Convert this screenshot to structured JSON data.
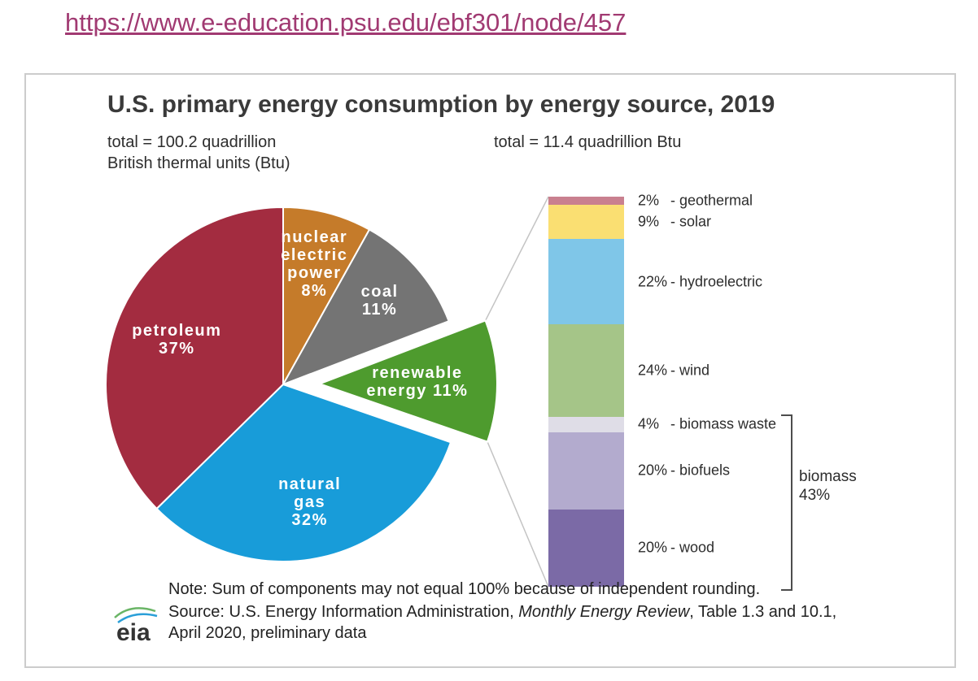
{
  "page": {
    "link_text": "https://www.e-education.psu.edu/ebf301/node/457"
  },
  "figure": {
    "title": "U.S. primary energy consumption by energy source, 2019",
    "pie_total_line1": "total = 100.2 quadrillion",
    "pie_total_line2": "British thermal units (Btu)",
    "bar_total": "total = 11.4 quadrillion Btu",
    "note": "Note: Sum of components may not equal 100% because of independent rounding.",
    "source_prefix": "Source: U.S. Energy Information Administration, ",
    "source_italic": "Monthly Energy Review",
    "source_suffix": ", Table 1.3 and 10.1,",
    "source_line2": "April 2020, preliminary data",
    "logo_text": "eia"
  },
  "chart_data": [
    {
      "type": "pie",
      "title": "U.S. primary energy consumption by energy source, 2019",
      "total_label": "total = 100.2 quadrillion British thermal units (Btu)",
      "units": "percent of total",
      "slices": [
        {
          "label": "nuclear electric power",
          "value": 8,
          "color": "#c57b2a",
          "label_lines": [
            "nuclear",
            "electric",
            "power",
            "8%"
          ]
        },
        {
          "label": "coal",
          "value": 11,
          "color": "#747474",
          "label_lines": [
            "coal",
            "11%"
          ]
        },
        {
          "label": "renewable energy",
          "value": 11,
          "color": "#4e9b2e",
          "exploded": true,
          "label_lines": [
            "renewable",
            "energy 11%"
          ]
        },
        {
          "label": "natural gas",
          "value": 32,
          "color": "#189cd9",
          "label_lines": [
            "natural",
            "gas",
            "32%"
          ]
        },
        {
          "label": "petroleum",
          "value": 37,
          "color": "#a32c40",
          "label_lines": [
            "petroleum",
            "37%"
          ]
        }
      ]
    },
    {
      "type": "bar",
      "subtype": "stacked-column",
      "title": "renewable energy share breakdown",
      "total_label": "total = 11.4 quadrillion Btu",
      "units": "percent of renewable total",
      "segments": [
        {
          "label": "geothermal",
          "value": 2,
          "color": "#c9808f"
        },
        {
          "label": "solar",
          "value": 9,
          "color": "#fadf72"
        },
        {
          "label": "hydroelectric",
          "value": 22,
          "color": "#7fc6e8"
        },
        {
          "label": "wind",
          "value": 24,
          "color": "#a5c588"
        },
        {
          "label": "biomass waste",
          "value": 4,
          "color": "#dfdde7"
        },
        {
          "label": "biofuels",
          "value": 20,
          "color": "#b3abce"
        },
        {
          "label": "wood",
          "value": 20,
          "color": "#7b6aa6"
        }
      ],
      "bracket": {
        "label": "biomass",
        "value": 43,
        "covers": [
          "biomass waste",
          "biofuels",
          "wood"
        ]
      }
    }
  ]
}
